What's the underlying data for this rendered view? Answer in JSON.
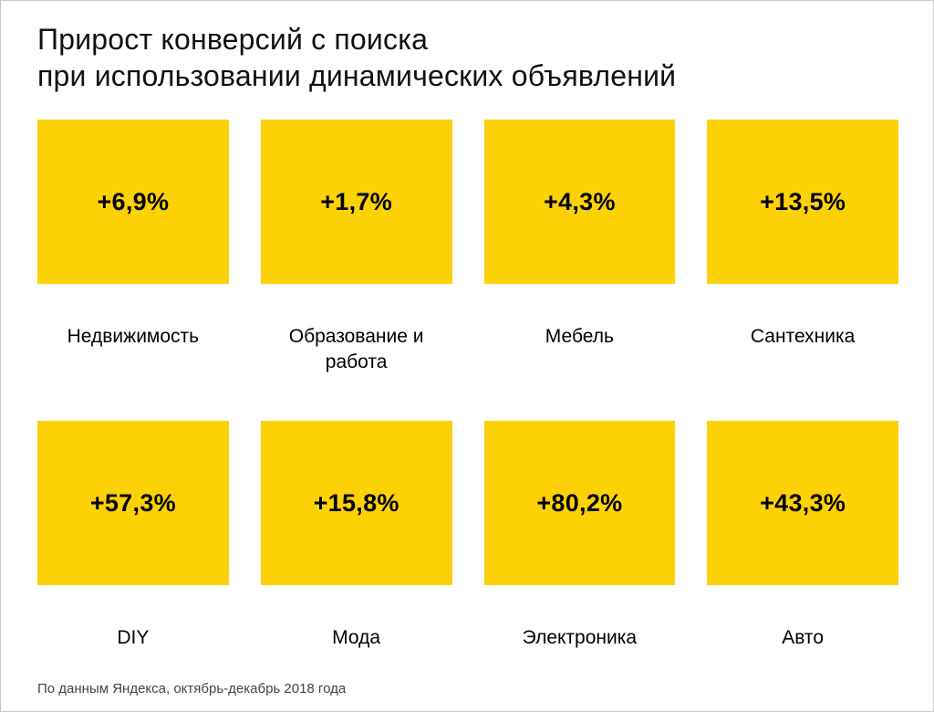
{
  "title": {
    "line1": "Прирост конверсий с поиска",
    "line2": "при использовании динамических объявлений"
  },
  "cells": [
    {
      "value": "+6,9%",
      "label": "Недвижимость"
    },
    {
      "value": "+1,7%",
      "label": "Образование и работа"
    },
    {
      "value": "+4,3%",
      "label": "Мебель"
    },
    {
      "value": "+13,5%",
      "label": "Сантехника"
    },
    {
      "value": "+57,3%",
      "label": "DIY"
    },
    {
      "value": "+15,8%",
      "label": "Мода"
    },
    {
      "value": "+80,2%",
      "label": "Электроника"
    },
    {
      "value": "+43,3%",
      "label": "Авто"
    }
  ],
  "footer": "По данным Яндекса, октябрь-декабрь 2018 года",
  "colors": {
    "tile": "#fcd206",
    "title_text": "#111111",
    "value_text": "#000000",
    "footer_text": "#444444"
  },
  "chart_data": {
    "type": "bar",
    "title": "Прирост конверсий с поиска при использовании динамических объявлений",
    "categories": [
      "Недвижимость",
      "Образование и работа",
      "Мебель",
      "Сантехника",
      "DIY",
      "Мода",
      "Электроника",
      "Авто"
    ],
    "values": [
      6.9,
      1.7,
      4.3,
      13.5,
      57.3,
      15.8,
      80.2,
      43.3
    ],
    "value_labels": [
      "+6,9%",
      "+1,7%",
      "+4,3%",
      "+13,5%",
      "+57,3%",
      "+15,8%",
      "+80,2%",
      "+43,3%"
    ],
    "unit": "%",
    "xlabel": "",
    "ylabel": "Прирост конверсий",
    "legend": "off",
    "grid": "off",
    "layout": "2 rows × 4 tiles, value inside yellow tile, category label below tile",
    "source": "По данным Яндекса, октябрь-декабрь 2018 года"
  }
}
